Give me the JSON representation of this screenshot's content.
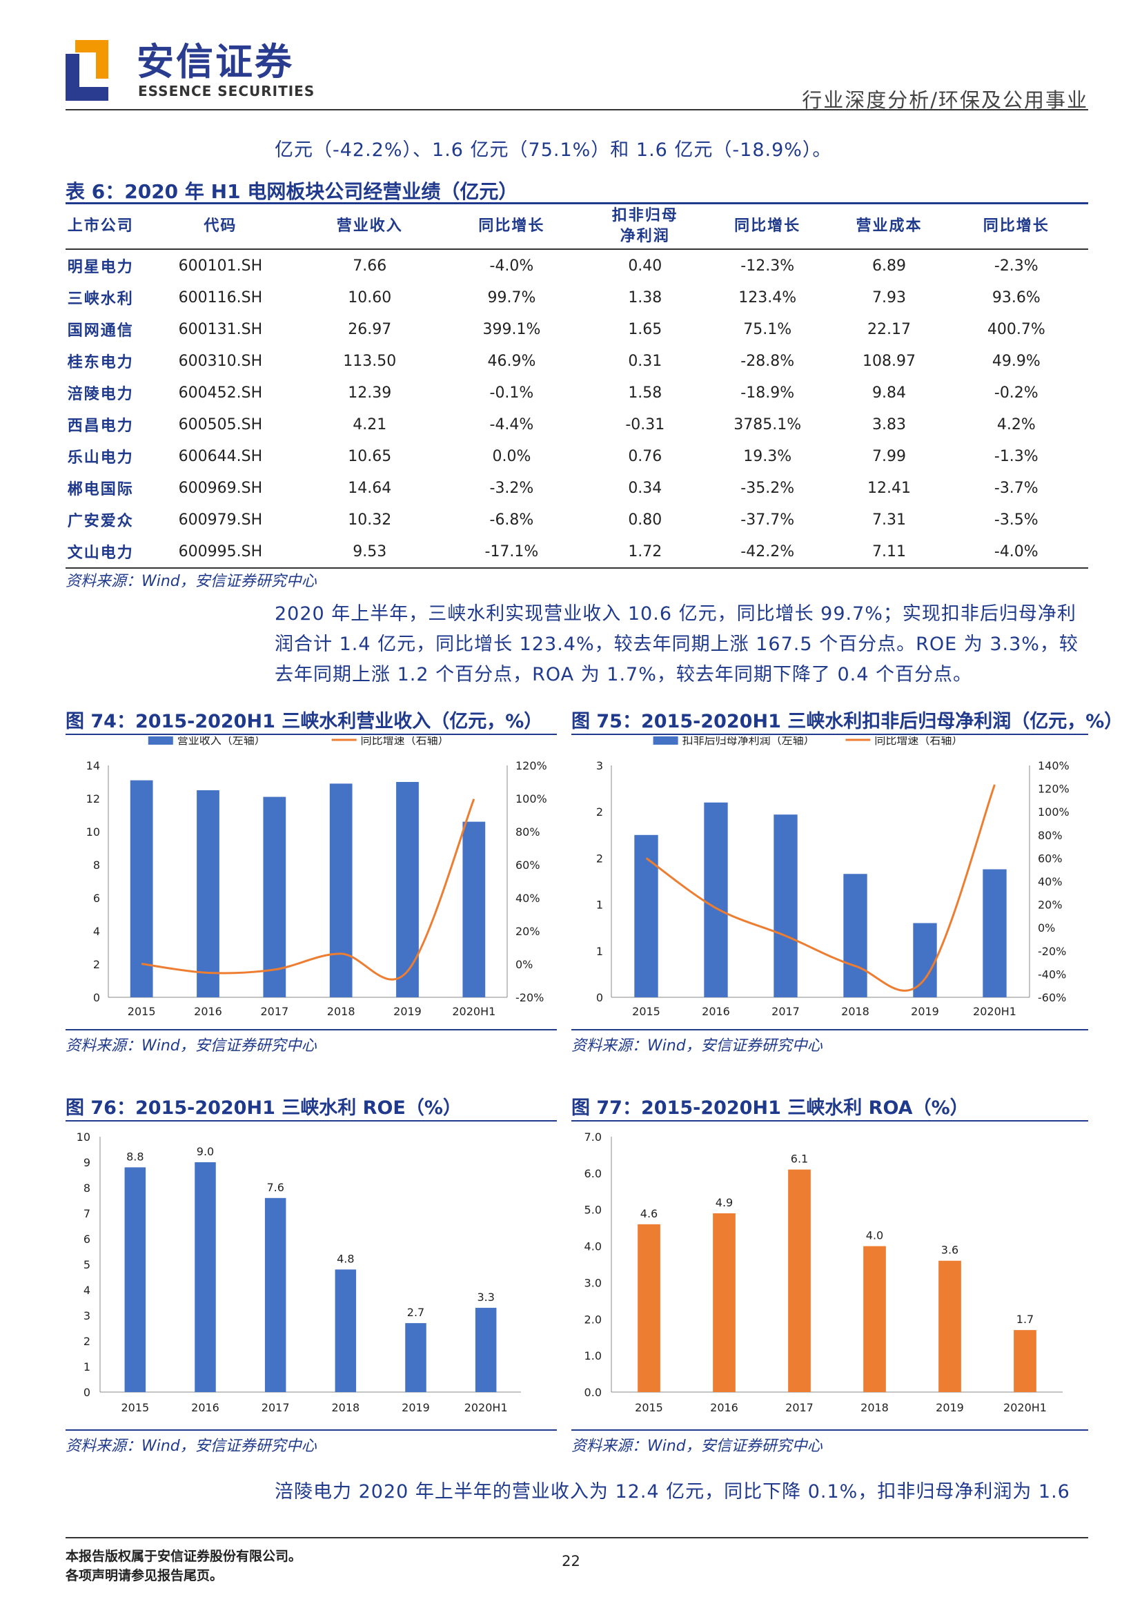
{
  "header": {
    "logo_cn": "安信证券",
    "logo_en": "ESSENCE SECURITIES",
    "section": "行业深度分析/环保及公用事业"
  },
  "intro_line": "亿元（-42.2%）、1.6 亿元（75.1%）和 1.6 亿元（-18.9%）。",
  "table": {
    "caption": "表 6：2020 年 H1 电网板块公司经营业绩（亿元）",
    "columns": [
      "上市公司",
      "代码",
      "营业收入",
      "同比增长",
      "扣非归母净利润",
      "同比增长",
      "营业成本",
      "同比增长"
    ],
    "rows": [
      [
        "明星电力",
        "600101.SH",
        "7.66",
        "-4.0%",
        "0.40",
        "-12.3%",
        "6.89",
        "-2.3%"
      ],
      [
        "三峡水利",
        "600116.SH",
        "10.60",
        "99.7%",
        "1.38",
        "123.4%",
        "7.93",
        "93.6%"
      ],
      [
        "国网通信",
        "600131.SH",
        "26.97",
        "399.1%",
        "1.65",
        "75.1%",
        "22.17",
        "400.7%"
      ],
      [
        "桂东电力",
        "600310.SH",
        "113.50",
        "46.9%",
        "0.31",
        "-28.8%",
        "108.97",
        "49.9%"
      ],
      [
        "涪陵电力",
        "600452.SH",
        "12.39",
        "-0.1%",
        "1.58",
        "-18.9%",
        "9.84",
        "-0.2%"
      ],
      [
        "西昌电力",
        "600505.SH",
        "4.21",
        "-4.4%",
        "-0.31",
        "3785.1%",
        "3.83",
        "4.2%"
      ],
      [
        "乐山电力",
        "600644.SH",
        "10.65",
        "0.0%",
        "0.76",
        "19.3%",
        "7.99",
        "-1.3%"
      ],
      [
        "郴电国际",
        "600969.SH",
        "14.64",
        "-3.2%",
        "0.34",
        "-35.2%",
        "12.41",
        "-3.7%"
      ],
      [
        "广安爱众",
        "600979.SH",
        "10.32",
        "-6.8%",
        "0.80",
        "-37.7%",
        "7.31",
        "-3.5%"
      ],
      [
        "文山电力",
        "600995.SH",
        "9.53",
        "-17.1%",
        "1.72",
        "-42.2%",
        "7.11",
        "-4.0%"
      ]
    ],
    "source": "资料来源：Wind，安信证券研究中心"
  },
  "paragraph": [
    "2020 年上半年，三峡水利实现营业收入 10.6 亿元，同比增长 99.7%；实现扣非后归母净利",
    "润合计 1.4 亿元，同比增长 123.4%，较去年同期上涨 167.5 个百分点。ROE 为 3.3%，较",
    "去年同期上涨 1.2 个百分点，ROA 为 1.7%，较去年同期下降了 0.4 个百分点。"
  ],
  "figures": {
    "fig74": {
      "caption": "图 74：2015-2020H1 三峡水利营业收入（亿元，%）",
      "source": "资料来源：Wind，安信证券研究中心"
    },
    "fig75": {
      "caption": "图 75：2015-2020H1 三峡水利扣非后归母净利润（亿元，%）",
      "source": "资料来源：Wind，安信证券研究中心"
    },
    "fig76": {
      "caption": "图 76：2015-2020H1 三峡水利 ROE（%）",
      "source": "资料来源：Wind，安信证券研究中心"
    },
    "fig77": {
      "caption": "图 77：2015-2020H1 三峡水利 ROA（%）",
      "source": "资料来源：Wind，安信证券研究中心"
    }
  },
  "closing_line": "涪陵电力 2020 年上半年的营业收入为 12.4 亿元，同比下降 0.1%，扣非归母净利润为 1.6",
  "footer": {
    "line1": "本报告版权属于安信证券股份有限公司。",
    "line2": "各项声明请参见报告尾页。",
    "page": "22"
  },
  "colors": {
    "blue": "#4472c4",
    "orange": "#ed7d31",
    "brand": "#1f3a8c"
  },
  "chart_data": [
    {
      "id": "fig74",
      "type": "bar",
      "categories": [
        "2015",
        "2016",
        "2017",
        "2018",
        "2019",
        "2020H1"
      ],
      "series": [
        {
          "name": "营业收入（左轴）",
          "type": "bar",
          "axis": "left",
          "values": [
            13.1,
            12.5,
            12.1,
            12.9,
            13.0,
            10.6
          ]
        },
        {
          "name": "同比增速（右轴）",
          "type": "line",
          "axis": "right",
          "values": [
            0.2,
            -5.2,
            -3.3,
            6.3,
            -4.3,
            99.7
          ]
        }
      ],
      "ylim_left": [
        0,
        14
      ],
      "yticks_left": [
        0,
        2,
        4,
        6,
        8,
        10,
        12,
        14
      ],
      "ylim_right": [
        -20,
        120
      ],
      "yticks_right": [
        "-20%",
        "0%",
        "20%",
        "40%",
        "60%",
        "80%",
        "100%",
        "120%"
      ],
      "legend": "top"
    },
    {
      "id": "fig75",
      "type": "bar",
      "categories": [
        "2015",
        "2016",
        "2017",
        "2018",
        "2019",
        "2020H1"
      ],
      "series": [
        {
          "name": "扣非后归母净利润（左轴）",
          "type": "bar",
          "axis": "left",
          "values": [
            1.75,
            2.1,
            1.97,
            1.33,
            0.8,
            1.38
          ]
        },
        {
          "name": "同比增速（右轴）",
          "type": "line",
          "axis": "right",
          "values": [
            60,
            17,
            -7,
            -33,
            -44,
            123.4
          ]
        }
      ],
      "ylim_left": [
        0,
        2.5
      ],
      "yticks_left": [
        "0",
        "1",
        "1",
        "2",
        "2",
        "3"
      ],
      "ylim_right": [
        -60,
        140
      ],
      "yticks_right": [
        "-60%",
        "-40%",
        "-20%",
        "0%",
        "20%",
        "40%",
        "60%",
        "80%",
        "100%",
        "120%",
        "140%"
      ],
      "legend": "top"
    },
    {
      "id": "fig76",
      "type": "bar",
      "categories": [
        "2015",
        "2016",
        "2017",
        "2018",
        "2019",
        "2020H1"
      ],
      "series": [
        {
          "name": "",
          "values": [
            8.8,
            9.0,
            7.6,
            4.8,
            2.7,
            3.3
          ],
          "labels": [
            "8.8",
            "9.0",
            "7.6",
            "4.8",
            "2.7",
            "3.3"
          ]
        }
      ],
      "ylim": [
        0,
        10
      ],
      "yticks": [
        "0",
        "1",
        "2",
        "3",
        "4",
        "5",
        "6",
        "7",
        "8",
        "9",
        "10"
      ]
    },
    {
      "id": "fig77",
      "type": "bar",
      "categories": [
        "2015",
        "2016",
        "2017",
        "2018",
        "2019",
        "2020H1"
      ],
      "series": [
        {
          "name": "",
          "values": [
            4.6,
            4.9,
            6.1,
            4.0,
            3.6,
            1.7
          ],
          "labels": [
            "4.6",
            "4.9",
            "6.1",
            "4.0",
            "3.6",
            "1.7"
          ]
        }
      ],
      "ylim": [
        0,
        7
      ],
      "yticks": [
        "0.0",
        "1.0",
        "2.0",
        "3.0",
        "4.0",
        "5.0",
        "6.0",
        "7.0"
      ]
    }
  ]
}
